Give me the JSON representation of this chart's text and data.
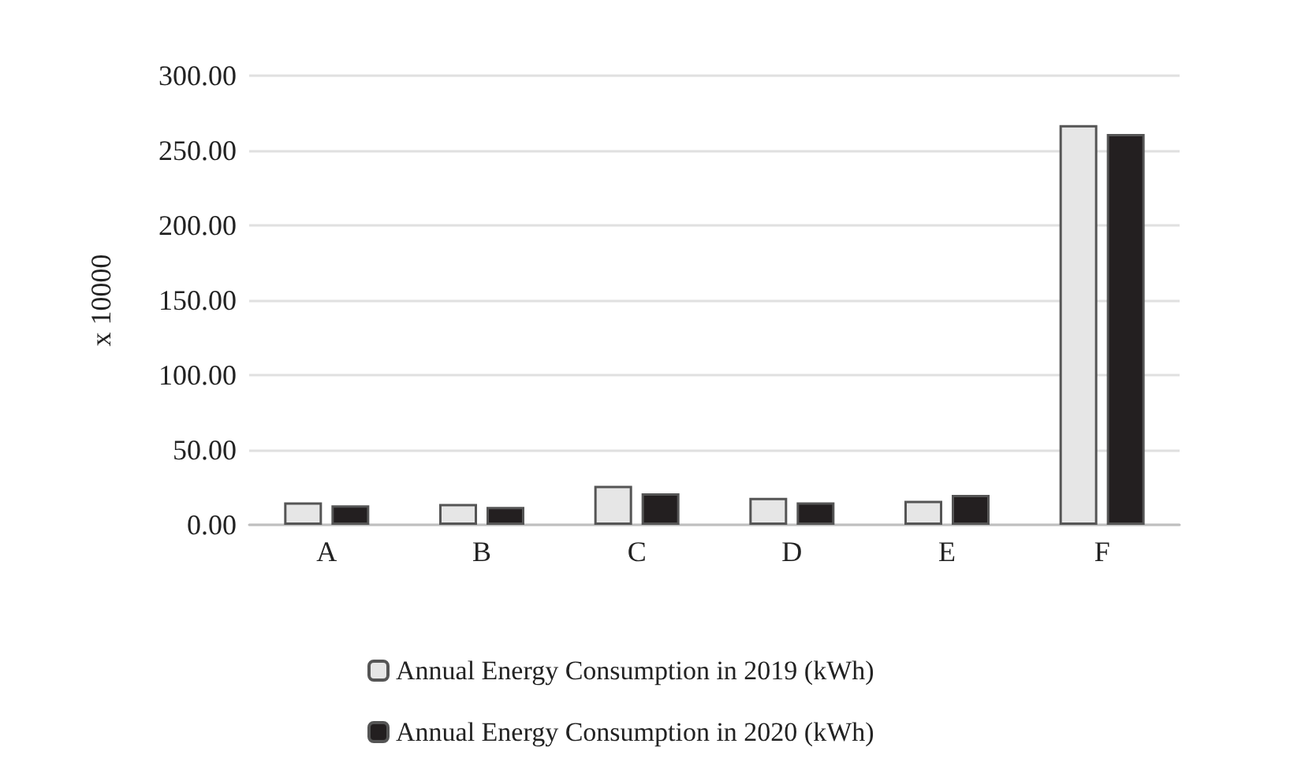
{
  "chart_data": {
    "type": "bar",
    "ylabel": "x 10000",
    "categories": [
      "A",
      "B",
      "C",
      "D",
      "E",
      "F"
    ],
    "series": [
      {
        "name": "Annual Energy Consumption in 2019 (kWh)",
        "color": "#e6e6e6",
        "values": [
          15,
          14,
          26,
          18,
          16,
          267
        ]
      },
      {
        "name": "Annual Energy Consumption in 2020 (kWh)",
        "color": "#231f20",
        "values": [
          13,
          12,
          21,
          15,
          20,
          261
        ]
      }
    ],
    "ylim": [
      0,
      300
    ],
    "yticks": [
      {
        "value": 0,
        "label": "0.00"
      },
      {
        "value": 50,
        "label": "50.00"
      },
      {
        "value": 100,
        "label": "100.00"
      },
      {
        "value": 150,
        "label": "150.00"
      },
      {
        "value": 200,
        "label": "200.00"
      },
      {
        "value": 250,
        "label": "250.00"
      },
      {
        "value": 300,
        "label": "300.00"
      }
    ],
    "grid": "y",
    "legend": "bottom"
  }
}
